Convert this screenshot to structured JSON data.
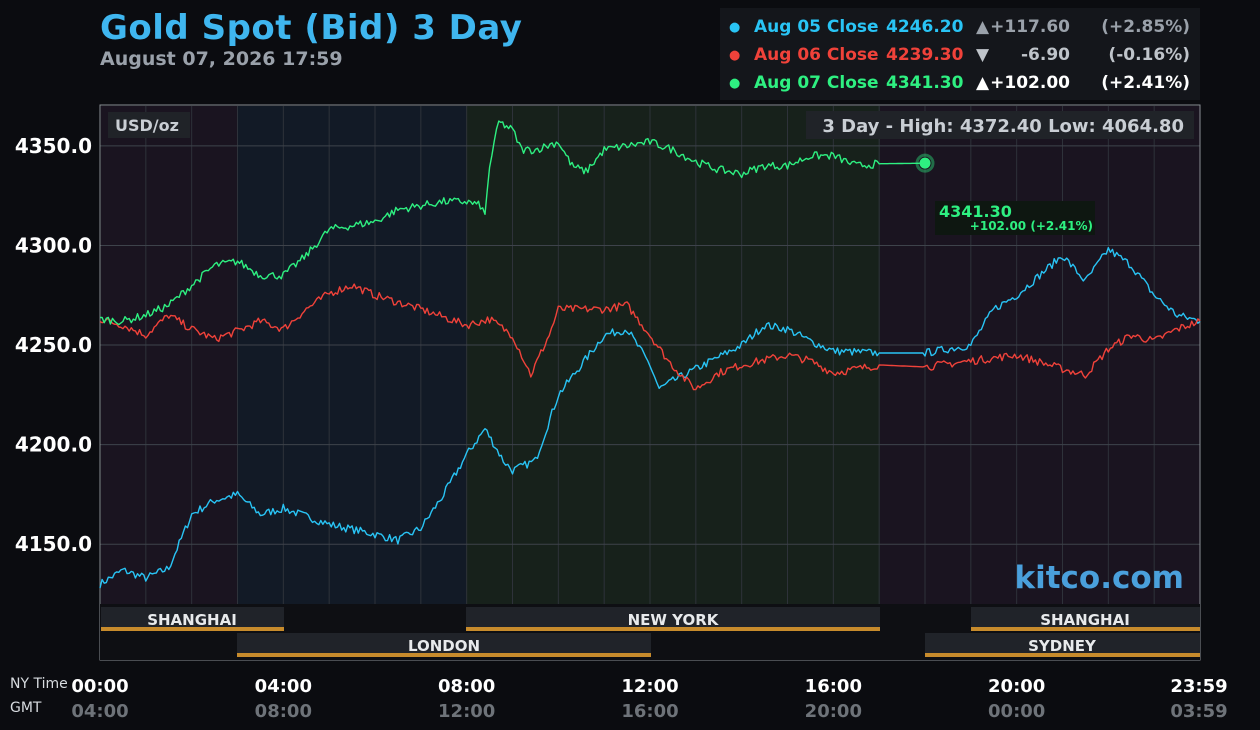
{
  "header": {
    "title": "Gold Spot (Bid) 3 Day",
    "timestamp": "August 07, 2026 17:59"
  },
  "legend": [
    {
      "label": "Aug 05 Close",
      "close": "4246.20",
      "arrow": "▲",
      "change": "+117.60",
      "pct": "(+2.85%)",
      "color": "#29c4f5"
    },
    {
      "label": "Aug 06 Close",
      "close": "4239.30",
      "arrow": "▼",
      "change": "-6.90",
      "pct": "(-0.16%)",
      "color": "#f0423a"
    },
    {
      "label": "Aug 07 Close",
      "close": "4341.30",
      "arrow": "▲",
      "change": "+102.00",
      "pct": "(+2.41%)",
      "color": "#2ef081"
    }
  ],
  "watermark": "kitco.com",
  "markets_row1": [
    "SHANGHAI",
    "NEW YORK",
    "SHANGHAI"
  ],
  "markets_row2": [
    "LONDON",
    "SYDNEY"
  ],
  "chart_data": {
    "type": "line",
    "ylabel": "USD/oz",
    "xlabel_primary": "NY Time",
    "xlabel_secondary": "GMT",
    "range_label": "3 Day - High: 4372.40  Low: 4064.80",
    "y_ticks": [
      "4150.0",
      "4200.0",
      "4250.0",
      "4300.0",
      "4350.0"
    ],
    "ylim": [
      4120,
      4370
    ],
    "x_ticks_ny": [
      "00:00",
      "04:00",
      "08:00",
      "12:00",
      "16:00",
      "20:00",
      "23:59"
    ],
    "x_ticks_gmt": [
      "04:00",
      "08:00",
      "12:00",
      "16:00",
      "20:00",
      "00:00",
      "03:59"
    ],
    "xlim_hours": [
      0,
      24
    ],
    "last_price": "4341.30",
    "last_change": "+102.00 (+2.41%)",
    "series": [
      {
        "name": "Aug 05",
        "color": "#29c4f5",
        "points": [
          [
            0,
            4130
          ],
          [
            0.5,
            4137
          ],
          [
            1,
            4133
          ],
          [
            1.5,
            4138
          ],
          [
            2,
            4165
          ],
          [
            2.5,
            4172
          ],
          [
            3,
            4175
          ],
          [
            3.5,
            4165
          ],
          [
            4,
            4168
          ],
          [
            5,
            4160
          ],
          [
            6,
            4155
          ],
          [
            6.5,
            4152
          ],
          [
            7,
            4158
          ],
          [
            7.5,
            4175
          ],
          [
            8,
            4195
          ],
          [
            8.4,
            4208
          ],
          [
            8.8,
            4192
          ],
          [
            9,
            4187
          ],
          [
            9.5,
            4192
          ],
          [
            10,
            4225
          ],
          [
            10.5,
            4240
          ],
          [
            11,
            4255
          ],
          [
            11.5,
            4258
          ],
          [
            12,
            4240
          ],
          [
            12.2,
            4228
          ],
          [
            12.5,
            4232
          ],
          [
            13,
            4238
          ],
          [
            14,
            4250
          ],
          [
            14.5,
            4260
          ],
          [
            15,
            4258
          ],
          [
            15.5,
            4252
          ],
          [
            16,
            4247
          ],
          [
            17,
            4246
          ],
          [
            18,
            4246
          ],
          [
            19,
            4250
          ],
          [
            19.5,
            4268
          ],
          [
            20,
            4275
          ],
          [
            20.5,
            4285
          ],
          [
            21,
            4295
          ],
          [
            21.5,
            4282
          ],
          [
            22,
            4298
          ],
          [
            22.5,
            4290
          ],
          [
            23,
            4275
          ],
          [
            23.5,
            4265
          ],
          [
            24,
            4262
          ]
        ]
      },
      {
        "name": "Aug 06",
        "color": "#f0423a",
        "points": [
          [
            0,
            4263
          ],
          [
            0.5,
            4260
          ],
          [
            1,
            4255
          ],
          [
            1.5,
            4265
          ],
          [
            2,
            4258
          ],
          [
            2.5,
            4253
          ],
          [
            3,
            4257
          ],
          [
            3.5,
            4262
          ],
          [
            4,
            4258
          ],
          [
            4.5,
            4268
          ],
          [
            5,
            4276
          ],
          [
            5.5,
            4280
          ],
          [
            6,
            4275
          ],
          [
            7,
            4268
          ],
          [
            8,
            4260
          ],
          [
            8.5,
            4263
          ],
          [
            9,
            4255
          ],
          [
            9.2,
            4245
          ],
          [
            9.4,
            4235
          ],
          [
            9.8,
            4255
          ],
          [
            10,
            4268
          ],
          [
            11,
            4268
          ],
          [
            11.5,
            4270
          ],
          [
            12,
            4255
          ],
          [
            12.4,
            4242
          ],
          [
            12.8,
            4232
          ],
          [
            13,
            4228
          ],
          [
            13.5,
            4236
          ],
          [
            14,
            4240
          ],
          [
            15,
            4245
          ],
          [
            15.5,
            4242
          ],
          [
            16,
            4236
          ],
          [
            17,
            4240
          ],
          [
            18,
            4239
          ],
          [
            19,
            4242
          ],
          [
            20,
            4245
          ],
          [
            21,
            4238
          ],
          [
            21.5,
            4235
          ],
          [
            22,
            4248
          ],
          [
            22.5,
            4255
          ],
          [
            23,
            4252
          ],
          [
            23.5,
            4258
          ],
          [
            24,
            4262
          ]
        ]
      },
      {
        "name": "Aug 07",
        "color": "#2ef081",
        "points": [
          [
            0,
            4263
          ],
          [
            0.5,
            4262
          ],
          [
            1,
            4265
          ],
          [
            1.5,
            4270
          ],
          [
            2,
            4280
          ],
          [
            2.5,
            4290
          ],
          [
            3,
            4292
          ],
          [
            3.5,
            4285
          ],
          [
            4,
            4285
          ],
          [
            4.5,
            4295
          ],
          [
            5,
            4308
          ],
          [
            5.5,
            4310
          ],
          [
            6,
            4312
          ],
          [
            6.5,
            4318
          ],
          [
            7,
            4320
          ],
          [
            7.5,
            4322
          ],
          [
            8,
            4322
          ],
          [
            8.3,
            4320
          ],
          [
            8.4,
            4315
          ],
          [
            8.5,
            4340
          ],
          [
            8.7,
            4362
          ],
          [
            9,
            4358
          ],
          [
            9.2,
            4348
          ],
          [
            9.5,
            4348
          ],
          [
            10,
            4352
          ],
          [
            10.3,
            4340
          ],
          [
            10.6,
            4337
          ],
          [
            11,
            4348
          ],
          [
            12,
            4352
          ],
          [
            12.5,
            4348
          ],
          [
            13,
            4342
          ],
          [
            13.5,
            4338
          ],
          [
            14,
            4336
          ],
          [
            14.5,
            4340
          ],
          [
            15,
            4340
          ],
          [
            15.5,
            4345
          ],
          [
            16,
            4345
          ],
          [
            16.5,
            4340
          ],
          [
            17,
            4341
          ],
          [
            18,
            4341.3
          ]
        ]
      }
    ]
  }
}
